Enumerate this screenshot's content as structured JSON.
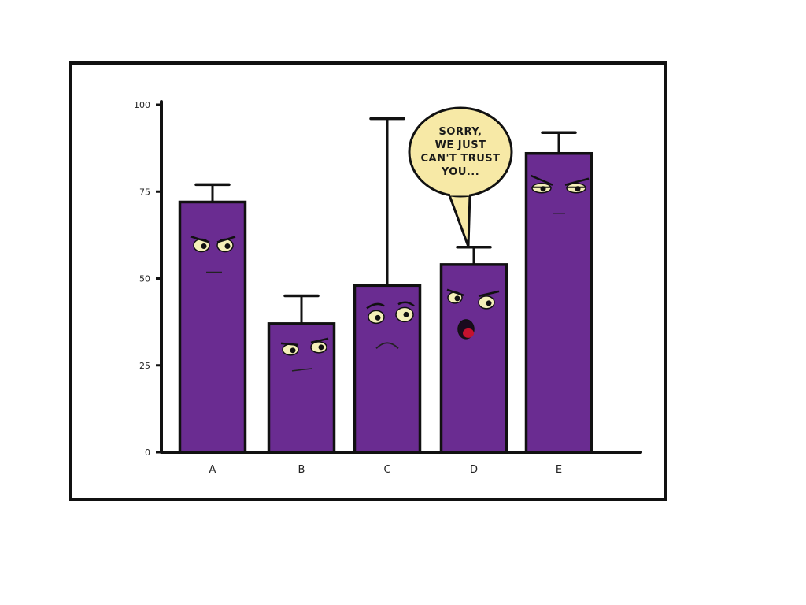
{
  "chart_data": {
    "type": "bar",
    "categories": [
      "A",
      "B",
      "C",
      "D",
      "E"
    ],
    "values": [
      72,
      37,
      48,
      54,
      86
    ],
    "error_upper": [
      77,
      45,
      96,
      59,
      92
    ],
    "ylim": [
      0,
      100
    ],
    "yticks": [
      "0",
      "25",
      "50",
      "75",
      "100"
    ],
    "grid": false,
    "colors": {
      "bar": "#6a2c91",
      "outline": "#111111",
      "eye": "#f4efb8",
      "mouth": "#c4122e"
    },
    "annotation": {
      "target_category": "D",
      "lines": [
        "SORRY,",
        "WE JUST",
        "CAN'T TRUST",
        "YOU..."
      ],
      "bubble_color": "#f7e9a6"
    }
  }
}
